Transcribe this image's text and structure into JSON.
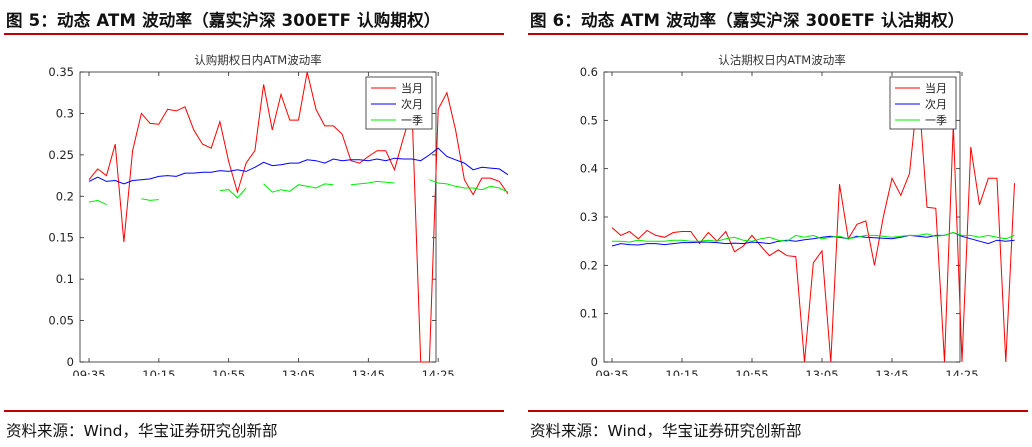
{
  "panels": [
    {
      "figure_title": "图 5：动态 ATM 波动率（嘉实沪深 300ETF 认购期权）",
      "source": "资料来源：Wind，华宝证券研究创新部"
    },
    {
      "figure_title": "图 6：动态 ATM 波动率（嘉实沪深 300ETF 认沽期权）",
      "source": "资料来源：Wind，华宝证券研究创新部"
    }
  ],
  "colors": {
    "rule": "#c00000",
    "series": [
      "#ff0000",
      "#0000ff",
      "#00ee00"
    ],
    "axis": "#262626"
  },
  "chart_data": [
    {
      "type": "line",
      "title": "认购期权日内ATM波动率",
      "xlabel": "",
      "ylabel": "",
      "x_ticks": [
        "09:35",
        "10:15",
        "10:55",
        "13:05",
        "13:45",
        "14:25"
      ],
      "xlim": [
        0,
        48
      ],
      "ylim": [
        0,
        0.35
      ],
      "y_ticks": [
        "0",
        "0.05",
        "0.1",
        "0.15",
        "0.2",
        "0.25",
        "0.3",
        "0.35"
      ],
      "grid": false,
      "legend_position": "top-right",
      "series": [
        {
          "name": "当月",
          "values": [
            0.22,
            0.233,
            0.225,
            0.263,
            0.145,
            0.255,
            0.3,
            0.288,
            0.287,
            0.305,
            0.303,
            0.308,
            0.28,
            0.263,
            0.258,
            0.29,
            0.242,
            0.205,
            0.24,
            0.255,
            0.335,
            0.28,
            0.323,
            0.292,
            0.292,
            0.35,
            0.305,
            0.285,
            0.285,
            0.275,
            0.243,
            0.24,
            0.248,
            0.255,
            0.255,
            0.232,
            0.27,
            0.305,
            0.0,
            0.0,
            0.305,
            0.325,
            0.28,
            0.22,
            0.202,
            0.222,
            0.222,
            0.218,
            0.203
          ]
        },
        {
          "name": "次月",
          "values": [
            0.218,
            0.223,
            0.218,
            0.219,
            0.215,
            0.219,
            0.22,
            0.221,
            0.224,
            0.225,
            0.224,
            0.228,
            0.228,
            0.229,
            0.229,
            0.231,
            0.23,
            0.232,
            0.23,
            0.235,
            0.241,
            0.237,
            0.238,
            0.24,
            0.24,
            0.244,
            0.243,
            0.24,
            0.245,
            0.243,
            0.244,
            0.244,
            0.243,
            0.245,
            0.243,
            0.246,
            0.245,
            0.245,
            0.243,
            0.25,
            0.258,
            0.248,
            0.244,
            0.24,
            0.232,
            0.235,
            0.234,
            0.233,
            0.226
          ]
        },
        {
          "name": "一季",
          "values": [
            0.193,
            0.195,
            0.19,
            null,
            0.197,
            null,
            0.197,
            0.195,
            0.196,
            null,
            null,
            null,
            null,
            null,
            null,
            0.207,
            0.208,
            0.198,
            0.21,
            null,
            0.215,
            0.205,
            0.208,
            0.206,
            0.214,
            0.212,
            0.21,
            0.215,
            0.214,
            null,
            0.214,
            0.215,
            0.216,
            0.218,
            0.217,
            0.216,
            null,
            0.218,
            null,
            0.22,
            0.216,
            0.215,
            0.212,
            0.21,
            0.21,
            0.208,
            0.212,
            0.21,
            0.205
          ]
        }
      ],
      "segment_breaks": {
        "一季": [
          3,
          5,
          9,
          14,
          19,
          29,
          36,
          38
        ]
      }
    },
    {
      "type": "line",
      "title": "认沽期权日内ATM波动率",
      "xlabel": "",
      "ylabel": "",
      "x_ticks": [
        "09:35",
        "10:15",
        "10:55",
        "13:05",
        "13:45",
        "14:25"
      ],
      "xlim": [
        0,
        48
      ],
      "ylim": [
        0,
        0.6
      ],
      "y_ticks": [
        "0",
        "0.1",
        "0.2",
        "0.3",
        "0.4",
        "0.5",
        "0.6"
      ],
      "grid": false,
      "legend_position": "top-right",
      "series": [
        {
          "name": "当月",
          "values": [
            0.278,
            0.262,
            0.27,
            0.255,
            0.272,
            0.262,
            0.258,
            0.268,
            0.27,
            0.27,
            0.245,
            0.268,
            0.25,
            0.27,
            0.228,
            0.24,
            0.262,
            0.24,
            0.22,
            0.232,
            0.22,
            0.218,
            0.0,
            0.205,
            0.23,
            0.0,
            0.368,
            0.255,
            0.285,
            0.292,
            0.2,
            0.3,
            0.38,
            0.345,
            0.39,
            0.567,
            0.32,
            0.318,
            0.0,
            0.49,
            0.0,
            0.445,
            0.325,
            0.38,
            0.38,
            0.0,
            0.37
          ]
        },
        {
          "name": "次月",
          "values": [
            0.24,
            0.245,
            0.243,
            0.242,
            0.245,
            0.245,
            0.243,
            0.245,
            0.247,
            0.247,
            0.248,
            0.248,
            0.247,
            0.245,
            0.246,
            0.245,
            0.248,
            0.247,
            0.245,
            0.25,
            0.252,
            0.25,
            0.253,
            0.255,
            0.258,
            0.26,
            0.258,
            0.255,
            0.26,
            0.258,
            0.257,
            0.256,
            0.255,
            0.258,
            0.262,
            0.26,
            0.258,
            0.262,
            0.262,
            0.268,
            0.26,
            0.255,
            0.25,
            0.245,
            0.252,
            0.25,
            0.252
          ]
        },
        {
          "name": "一季",
          "values": [
            0.25,
            0.25,
            0.248,
            0.252,
            0.25,
            0.25,
            0.25,
            0.252,
            0.252,
            0.25,
            0.25,
            0.252,
            0.25,
            0.255,
            0.258,
            0.252,
            0.25,
            0.255,
            0.258,
            0.252,
            0.25,
            0.262,
            0.258,
            0.262,
            0.255,
            0.258,
            0.26,
            0.255,
            0.258,
            0.262,
            0.262,
            0.26,
            0.258,
            0.26,
            0.262,
            0.262,
            0.265,
            0.26,
            0.262,
            0.268,
            0.262,
            0.262,
            0.258,
            0.262,
            0.258,
            0.255,
            0.262
          ]
        }
      ]
    }
  ]
}
